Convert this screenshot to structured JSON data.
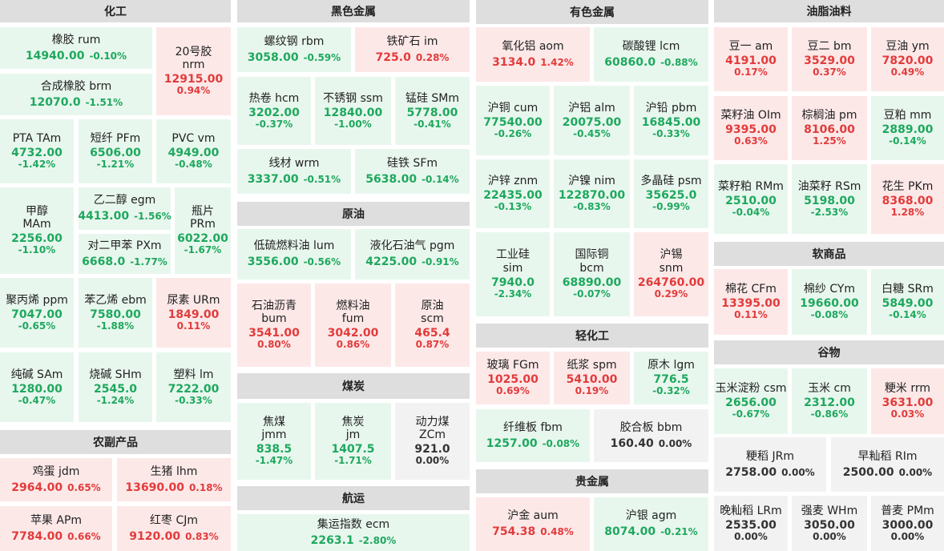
{
  "colors": {
    "up": "#e23b3b",
    "down": "#1ea85e",
    "flat": "#333333"
  },
  "sections": [
    {
      "title": "化工",
      "tiles": [
        {
          "name": "橡胶  rum",
          "price": "14940.00",
          "change": "-0.10%",
          "dir": "down"
        },
        {
          "name": "20号胶\nnrm",
          "price": "12915.00",
          "change": "0.94%",
          "dir": "up"
        },
        {
          "name": "合成橡胶  brm",
          "price": "12070.0",
          "change": "-1.51%",
          "dir": "down"
        },
        {
          "name": "PTA  TAm",
          "price": "4732.00",
          "change": "-1.42%",
          "dir": "down"
        },
        {
          "name": "短纤  PFm",
          "price": "6506.00",
          "change": "-1.21%",
          "dir": "down"
        },
        {
          "name": "PVC  vm",
          "price": "4949.00",
          "change": "-0.48%",
          "dir": "down"
        },
        {
          "name": "甲醇\nMAm",
          "price": "2256.00",
          "change": "-1.10%",
          "dir": "down"
        },
        {
          "name": "乙二醇  egm",
          "price": "4413.00",
          "change": "-1.56%",
          "dir": "down"
        },
        {
          "name": "瓶片\nPRm",
          "price": "6022.00",
          "change": "-1.67%",
          "dir": "down"
        },
        {
          "name": "对二甲苯  PXm",
          "price": "6668.0",
          "change": "-1.77%",
          "dir": "down"
        },
        {
          "name": "聚丙烯  ppm",
          "price": "7047.00",
          "change": "-0.65%",
          "dir": "down"
        },
        {
          "name": "苯乙烯  ebm",
          "price": "7580.00",
          "change": "-1.88%",
          "dir": "down"
        },
        {
          "name": "尿素  URm",
          "price": "1849.00",
          "change": "0.11%",
          "dir": "up"
        },
        {
          "name": "纯碱  SAm",
          "price": "1280.00",
          "change": "-0.47%",
          "dir": "down"
        },
        {
          "name": "烧碱  SHm",
          "price": "2545.0",
          "change": "-1.24%",
          "dir": "down"
        },
        {
          "name": "塑料  lm",
          "price": "7222.00",
          "change": "-0.33%",
          "dir": "down"
        }
      ]
    },
    {
      "title": "农副产品",
      "tiles": [
        {
          "name": "鸡蛋  jdm",
          "price": "2964.00",
          "change": "0.65%",
          "dir": "up"
        },
        {
          "name": "生猪  lhm",
          "price": "13690.00",
          "change": "0.18%",
          "dir": "up"
        },
        {
          "name": "苹果  APm",
          "price": "7784.00",
          "change": "0.66%",
          "dir": "up"
        },
        {
          "name": "红枣  CJm",
          "price": "9120.00",
          "change": "0.83%",
          "dir": "up"
        }
      ]
    },
    {
      "title": "黑色金属",
      "tiles": [
        {
          "name": "螺纹钢  rbm",
          "price": "3058.00",
          "change": "-0.59%",
          "dir": "down"
        },
        {
          "name": "铁矿石  im",
          "price": "725.0",
          "change": "0.28%",
          "dir": "up"
        },
        {
          "name": "热卷  hcm",
          "price": "3202.00",
          "change": "-0.37%",
          "dir": "down"
        },
        {
          "name": "不锈钢  ssm",
          "price": "12840.00",
          "change": "-1.00%",
          "dir": "down"
        },
        {
          "name": "锰硅  SMm",
          "price": "5778.00",
          "change": "-0.41%",
          "dir": "down"
        },
        {
          "name": "线材  wrm",
          "price": "3337.00",
          "change": "-0.51%",
          "dir": "down"
        },
        {
          "name": "硅铁  SFm",
          "price": "5638.00",
          "change": "-0.14%",
          "dir": "down"
        }
      ]
    },
    {
      "title": "原油",
      "tiles": [
        {
          "name": "低硫燃料油  lum",
          "price": "3556.00",
          "change": "-0.56%",
          "dir": "down"
        },
        {
          "name": "液化石油气  pgm",
          "price": "4225.00",
          "change": "-0.91%",
          "dir": "down"
        },
        {
          "name": "石油沥青\nbum",
          "price": "3541.00",
          "change": "0.80%",
          "dir": "up"
        },
        {
          "name": "燃料油\nfum",
          "price": "3042.00",
          "change": "0.86%",
          "dir": "up"
        },
        {
          "name": "原油\nscm",
          "price": "465.4",
          "change": "0.87%",
          "dir": "up"
        }
      ]
    },
    {
      "title": "煤炭",
      "tiles": [
        {
          "name": "焦煤\njmm",
          "price": "838.5",
          "change": "-1.47%",
          "dir": "down"
        },
        {
          "name": "焦炭\njm",
          "price": "1407.5",
          "change": "-1.71%",
          "dir": "down"
        },
        {
          "name": "动力煤\nZCm",
          "price": "921.0",
          "change": "0.00%",
          "dir": "flat"
        }
      ]
    },
    {
      "title": "航运",
      "tiles": [
        {
          "name": "集运指数  ecm",
          "price": "2263.1",
          "change": "-2.80%",
          "dir": "down"
        }
      ]
    },
    {
      "title": "有色金属",
      "tiles": [
        {
          "name": "氧化铝  aom",
          "price": "3134.0",
          "change": "1.42%",
          "dir": "up"
        },
        {
          "name": "碳酸锂  lcm",
          "price": "60860.0",
          "change": "-0.88%",
          "dir": "down"
        },
        {
          "name": "沪铜  cum",
          "price": "77540.00",
          "change": "-0.26%",
          "dir": "down"
        },
        {
          "name": "沪铝  alm",
          "price": "20075.00",
          "change": "-0.45%",
          "dir": "down"
        },
        {
          "name": "沪铅  pbm",
          "price": "16845.00",
          "change": "-0.33%",
          "dir": "down"
        },
        {
          "name": "沪锌  znm",
          "price": "22435.00",
          "change": "-0.13%",
          "dir": "down"
        },
        {
          "name": "沪镍  nim",
          "price": "122870.00",
          "change": "-0.83%",
          "dir": "down"
        },
        {
          "name": "多晶硅  psm",
          "price": "35625.0",
          "change": "-0.99%",
          "dir": "down"
        },
        {
          "name": "工业硅\nsim",
          "price": "7940.0",
          "change": "-2.34%",
          "dir": "down"
        },
        {
          "name": "国际铜\nbcm",
          "price": "68890.00",
          "change": "-0.07%",
          "dir": "down"
        },
        {
          "name": "沪锡\nsnm",
          "price": "264760.00",
          "change": "0.29%",
          "dir": "up"
        }
      ]
    },
    {
      "title": "轻化工",
      "tiles": [
        {
          "name": "玻璃  FGm",
          "price": "1025.00",
          "change": "0.69%",
          "dir": "up"
        },
        {
          "name": "纸浆  spm",
          "price": "5410.00",
          "change": "0.19%",
          "dir": "up"
        },
        {
          "name": "原木  lgm",
          "price": "776.5",
          "change": "-0.32%",
          "dir": "down"
        },
        {
          "name": "纤维板  fbm",
          "price": "1257.00",
          "change": "-0.08%",
          "dir": "down"
        },
        {
          "name": "胶合板  bbm",
          "price": "160.40",
          "change": "0.00%",
          "dir": "flat"
        }
      ]
    },
    {
      "title": "贵金属",
      "tiles": [
        {
          "name": "沪金  aum",
          "price": "754.38",
          "change": "0.48%",
          "dir": "up"
        },
        {
          "name": "沪银  agm",
          "price": "8074.00",
          "change": "-0.21%",
          "dir": "down"
        }
      ]
    },
    {
      "title": "油脂油料",
      "tiles": [
        {
          "name": "豆一  am",
          "price": "4191.00",
          "change": "0.17%",
          "dir": "up"
        },
        {
          "name": "豆二  bm",
          "price": "3529.00",
          "change": "0.37%",
          "dir": "up"
        },
        {
          "name": "豆油  ym",
          "price": "7820.00",
          "change": "0.49%",
          "dir": "up"
        },
        {
          "name": "菜籽油  OIm",
          "price": "9395.00",
          "change": "0.63%",
          "dir": "up"
        },
        {
          "name": "棕榈油  pm",
          "price": "8106.00",
          "change": "1.25%",
          "dir": "up"
        },
        {
          "name": "豆粕  mm",
          "price": "2889.00",
          "change": "-0.14%",
          "dir": "down"
        },
        {
          "name": "菜籽粕  RMm",
          "price": "2510.00",
          "change": "-0.04%",
          "dir": "down"
        },
        {
          "name": "油菜籽  RSm",
          "price": "5198.00",
          "change": "-2.53%",
          "dir": "down"
        },
        {
          "name": "花生  PKm",
          "price": "8368.00",
          "change": "1.28%",
          "dir": "up"
        }
      ]
    },
    {
      "title": "软商品",
      "tiles": [
        {
          "name": "棉花  CFm",
          "price": "13395.00",
          "change": "0.11%",
          "dir": "up"
        },
        {
          "name": "棉纱  CYm",
          "price": "19660.00",
          "change": "-0.08%",
          "dir": "down"
        },
        {
          "name": "白糖  SRm",
          "price": "5849.00",
          "change": "-0.14%",
          "dir": "down"
        }
      ]
    },
    {
      "title": "谷物",
      "tiles": [
        {
          "name": "玉米淀粉  csm",
          "price": "2656.00",
          "change": "-0.67%",
          "dir": "down"
        },
        {
          "name": "玉米  cm",
          "price": "2312.00",
          "change": "-0.86%",
          "dir": "down"
        },
        {
          "name": "粳米  rrm",
          "price": "3631.00",
          "change": "0.03%",
          "dir": "up"
        },
        {
          "name": "粳稻  JRm",
          "price": "2758.00",
          "change": "0.00%",
          "dir": "flat"
        },
        {
          "name": "早籼稻  RIm",
          "price": "2500.00",
          "change": "0.00%",
          "dir": "flat"
        },
        {
          "name": "晚籼稻  LRm",
          "price": "2535.00",
          "change": "0.00%",
          "dir": "flat"
        },
        {
          "name": "强麦  WHm",
          "price": "3050.00",
          "change": "0.00%",
          "dir": "flat"
        },
        {
          "name": "普麦  PMm",
          "price": "3000.00",
          "change": "0.00%",
          "dir": "flat"
        }
      ]
    }
  ]
}
